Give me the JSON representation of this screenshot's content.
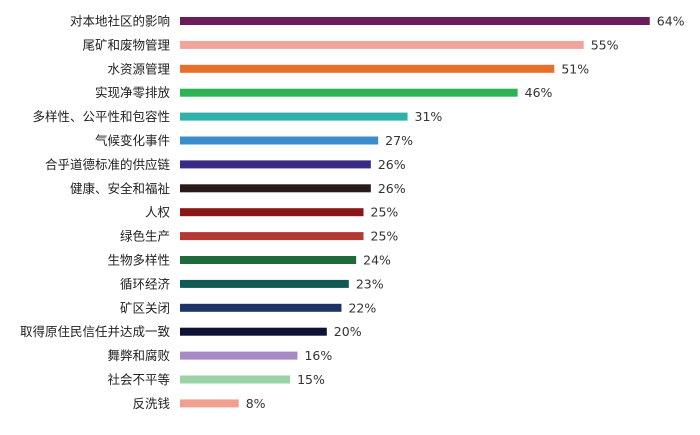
{
  "chart_data": {
    "type": "bar",
    "orientation": "horizontal",
    "categories": [
      "对本地社区的影响",
      "尾矿和废物管理",
      "水资源管理",
      "实现净零排放",
      "多样性、公平性和包容性",
      "气候变化事件",
      "合乎道德标准的供应链",
      "健康、安全和福祉",
      "人权",
      "绿色生产",
      "生物多样性",
      "循环经济",
      "矿区关闭",
      "取得原住民信任并达成一致",
      "舞弊和腐败",
      "社会不平等",
      "反洗钱"
    ],
    "values": [
      64,
      55,
      51,
      46,
      31,
      27,
      26,
      26,
      25,
      25,
      24,
      23,
      22,
      20,
      16,
      15,
      8
    ],
    "value_labels": [
      "64%",
      "55%",
      "51%",
      "46%",
      "31%",
      "27%",
      "26%",
      "26%",
      "25%",
      "25%",
      "24%",
      "23%",
      "22%",
      "20%",
      "16%",
      "15%",
      "8%"
    ],
    "colors": [
      "#6b1f5a",
      "#f0a49a",
      "#e8702a",
      "#2db356",
      "#2fb0aa",
      "#3a8ccb",
      "#3b2a84",
      "#2b1a1a",
      "#8a1616",
      "#b23a32",
      "#1f6a3b",
      "#0f5a52",
      "#1e3468",
      "#0d1236",
      "#a58ac6",
      "#9bd3a7",
      "#f1a08f"
    ],
    "xlim": [
      0,
      64
    ],
    "grid": false,
    "legend": false,
    "title": "",
    "xlabel": "",
    "ylabel": ""
  }
}
